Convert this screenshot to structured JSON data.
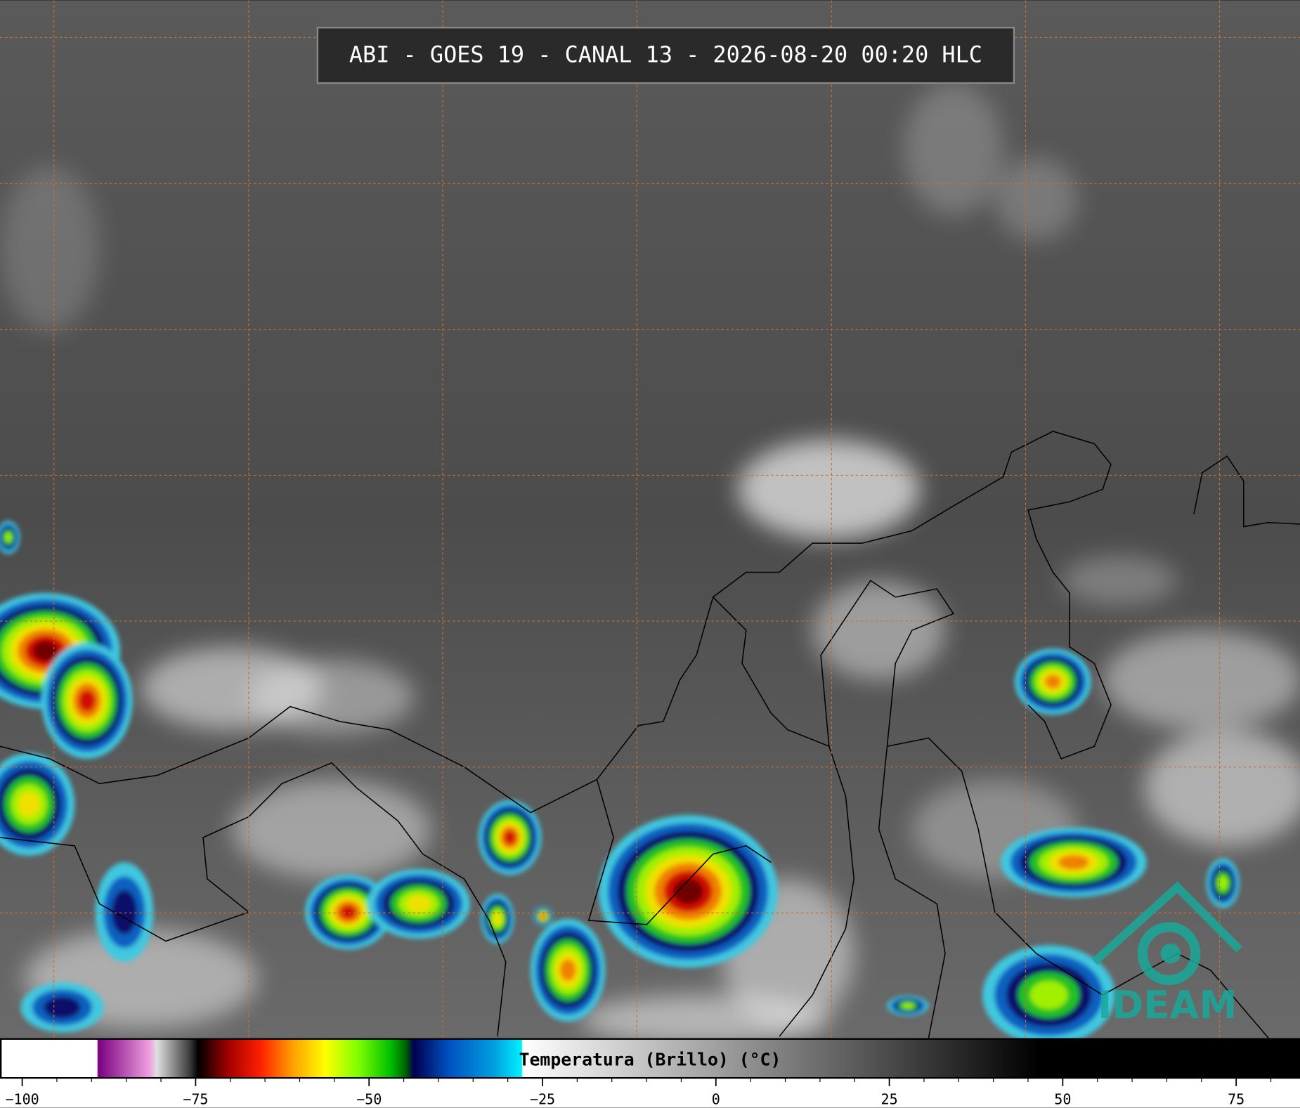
{
  "title": "ABI - GOES 19 - CANAL 13 - 2026-08-20 00:20 HLC",
  "logo": "IDEAM",
  "colorbar": {
    "label": "Temperatura (Brillo) (°C)",
    "lim": [
      -103.2,
      84.2
    ],
    "ticks": [
      {
        "value": -100,
        "label": "−100"
      },
      {
        "value": -75,
        "label": "−75"
      },
      {
        "value": -50,
        "label": "−50"
      },
      {
        "value": -25,
        "label": "−25"
      },
      0,
      25,
      50,
      75
    ],
    "minor_ticks": [
      -95,
      -90,
      -85,
      -80,
      -70,
      -65,
      -60,
      -55,
      -45,
      -40,
      -35,
      -30,
      -20,
      -15,
      -10,
      -5,
      5,
      10,
      15,
      20,
      30,
      35,
      40,
      45,
      55,
      60,
      65,
      70,
      80
    ]
  }
}
